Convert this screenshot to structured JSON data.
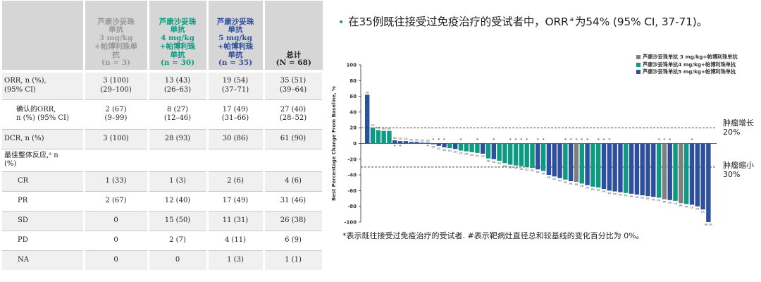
{
  "table": {
    "headers": [
      {
        "lines": [
          "芦康沙妥珠",
          "单抗",
          "3 mg/kg",
          "+帕博利珠单",
          "抗",
          "(n = 3)"
        ],
        "color": "c3"
      },
      {
        "lines": [
          "芦康沙妥珠",
          "单抗",
          "4 mg/kg",
          "+帕博利珠",
          "单抗",
          "(n = 30)"
        ],
        "color": "c4"
      },
      {
        "lines": [
          "芦康沙妥珠",
          "单抗",
          "5 mg/kg",
          "+帕博利珠",
          "单抗",
          "(n = 35)"
        ],
        "color": "c5"
      },
      {
        "lines": [
          "总计",
          "(N = 68)"
        ],
        "color": "ct"
      }
    ],
    "rows": [
      {
        "label": [
          "ORR, n (%),",
          "(95% CI)"
        ],
        "indent": 0,
        "values": [
          [
            "3 (100)",
            "(29–100)"
          ],
          [
            "13 (43)",
            "(26–63)"
          ],
          [
            "19 (54)",
            "(37–71)"
          ],
          [
            "35 (51)",
            "(39–64)"
          ]
        ],
        "h": 40
      },
      {
        "label": [
          "确认的ORR,",
          "n (%) (95% CI)"
        ],
        "indent": 1,
        "values": [
          [
            "2 (67)",
            "(9–99)"
          ],
          [
            "8 (27)",
            "(12–46)"
          ],
          [
            "17 (49)",
            "(31–66)"
          ],
          [
            "27 (40)",
            "(28–52)"
          ]
        ],
        "h": 42
      },
      {
        "label": [
          "DCR, n (%)"
        ],
        "indent": 0,
        "values": [
          [
            "3 (100)"
          ],
          [
            "28 (93)"
          ],
          [
            "30 (86)"
          ],
          [
            "61 (90)"
          ]
        ],
        "h": 28
      },
      {
        "label": [
          "最佳整体反应,ᵃ n",
          "(%)"
        ],
        "indent": 0,
        "values": [
          [],
          [],
          [],
          []
        ],
        "h": 32
      },
      {
        "label": [
          "CR"
        ],
        "indent": 2,
        "values": [
          [
            "1 (33)"
          ],
          [
            "1 (3)"
          ],
          [
            "2 (6)"
          ],
          [
            "4 (6)"
          ]
        ],
        "h": 28
      },
      {
        "label": [
          "PR"
        ],
        "indent": 2,
        "values": [
          [
            "2 (67)"
          ],
          [
            "12 (40)"
          ],
          [
            "17 (49)"
          ],
          [
            "31 (46)"
          ]
        ],
        "h": 28
      },
      {
        "label": [
          "SD"
        ],
        "indent": 2,
        "values": [
          [
            "0"
          ],
          [
            "15 (50)"
          ],
          [
            "11 (31)"
          ],
          [
            "26 (38)"
          ]
        ],
        "h": 28
      },
      {
        "label": [
          "PD"
        ],
        "indent": 2,
        "values": [
          [
            "0"
          ],
          [
            "2 (7)"
          ],
          [
            "4 (11)"
          ],
          [
            "6 (9)"
          ]
        ],
        "h": 28
      },
      {
        "label": [
          "NA"
        ],
        "indent": 2,
        "values": [
          [
            "0"
          ],
          [
            "0"
          ],
          [
            "1 (3)"
          ],
          [
            "1 (1)"
          ]
        ],
        "h": 28
      }
    ]
  },
  "headline": {
    "bullet": "•",
    "text_before": "在35例既往接受过免疫治疗的受试者中，ORR",
    "sup": "a",
    "text_after": "为54% (95% CI, 37-71)。"
  },
  "footnote": "*表示既往接受过免疫治疗的受试者. #表示靶病灶直径总和较基线的变化百分比为 0%。",
  "annotations": {
    "growth": [
      "肿瘤增长",
      "20%"
    ],
    "shrink": [
      "肿瘤缩小",
      "30%"
    ]
  },
  "chart_data": {
    "type": "bar",
    "ylabel": "Best Percentage Change From Baseline, %",
    "ylim": [
      -100,
      100
    ],
    "yticks": [
      100,
      80,
      60,
      40,
      20,
      0,
      -20,
      -40,
      -60,
      -80,
      -100
    ],
    "reference_lines": [
      20,
      -30
    ],
    "colors": {
      "3mg": "#7f7f7f",
      "4mg": "#0c9b82",
      "5mg": "#2d4f9e"
    },
    "legend": [
      {
        "key": "3mg",
        "label": "芦康沙妥珠单抗 3 mg/kg+帕博利珠单抗"
      },
      {
        "key": "4mg",
        "label": "芦康沙妥珠单抗4 mg/kg+帕博利珠单抗"
      },
      {
        "key": "5mg",
        "label": "芦康沙妥珠单抗5 mg/kg+帕博利珠单抗"
      }
    ],
    "bars": [
      {
        "g": "5mg",
        "v": 62,
        "r": "PD",
        "s": 0
      },
      {
        "g": "4mg",
        "v": 20,
        "r": "PD",
        "s": 0
      },
      {
        "g": "4mg",
        "v": 17,
        "r": "PD",
        "s": 0
      },
      {
        "g": "4mg",
        "v": 16,
        "r": "SD",
        "s": 0
      },
      {
        "g": "4mg",
        "v": 16,
        "r": "SD",
        "s": 0
      },
      {
        "g": "5mg",
        "v": 4,
        "r": "SD",
        "s": 1
      },
      {
        "g": "5mg",
        "v": 3,
        "r": "SD",
        "s": 1
      },
      {
        "g": "5mg",
        "v": 3,
        "r": "SD",
        "s": 0
      },
      {
        "g": "5mg",
        "v": 2,
        "r": "PD",
        "s": 0
      },
      {
        "g": "5mg",
        "v": 2,
        "r": "SD",
        "s": 0
      },
      {
        "g": "5mg",
        "v": 1,
        "r": "SD",
        "s": 0
      },
      {
        "g": "5mg",
        "v": 1,
        "r": "SD",
        "s": 1
      },
      {
        "g": "5mg",
        "v": -1,
        "r": "SD",
        "s": 1
      },
      {
        "g": "5mg",
        "v": -3,
        "r": "SD",
        "s": 1
      },
      {
        "g": "5mg",
        "v": -5,
        "r": "SD",
        "s": 1
      },
      {
        "g": "4mg",
        "v": -6,
        "r": "SD",
        "s": 0
      },
      {
        "g": "5mg",
        "v": -7,
        "r": "SD",
        "s": 0
      },
      {
        "g": "4mg",
        "v": -9,
        "r": "SD",
        "s": 1
      },
      {
        "g": "4mg",
        "v": -10,
        "r": "SD",
        "s": 0
      },
      {
        "g": "4mg",
        "v": -11,
        "r": "SD",
        "s": 0
      },
      {
        "g": "4mg",
        "v": -12,
        "r": "SD",
        "s": 1
      },
      {
        "g": "5mg",
        "v": -13,
        "r": "SD",
        "s": 0
      },
      {
        "g": "4mg",
        "v": -19,
        "r": "SD",
        "s": 0
      },
      {
        "g": "5mg",
        "v": -20,
        "r": "SD",
        "s": 1
      },
      {
        "g": "4mg",
        "v": -22,
        "r": "SD",
        "s": 0
      },
      {
        "g": "4mg",
        "v": -25,
        "r": "SD",
        "s": 0
      },
      {
        "g": "4mg",
        "v": -27,
        "r": "SD",
        "s": 1
      },
      {
        "g": "4mg",
        "v": -28,
        "r": "SD",
        "s": 1
      },
      {
        "g": "4mg",
        "v": -29,
        "r": "SD",
        "s": 1
      },
      {
        "g": "4mg",
        "v": -30,
        "r": "SD",
        "s": 1
      },
      {
        "g": "4mg",
        "v": -31,
        "r": "PR",
        "s": 0
      },
      {
        "g": "5mg",
        "v": -33,
        "r": "PR",
        "s": 1
      },
      {
        "g": "4mg",
        "v": -35,
        "r": "PR",
        "s": 1
      },
      {
        "g": "5mg",
        "v": -40,
        "r": "PR",
        "s": 0
      },
      {
        "g": "5mg",
        "v": -42,
        "r": "PR",
        "s": 0
      },
      {
        "g": "5mg",
        "v": -44,
        "r": "PR",
        "s": 0
      },
      {
        "g": "4mg",
        "v": -46,
        "r": "PR",
        "s": 1
      },
      {
        "g": "5mg",
        "v": -48,
        "r": "PR",
        "s": 1
      },
      {
        "g": "3mg",
        "v": -49,
        "r": "PR",
        "s": 1
      },
      {
        "g": "4mg",
        "v": -51,
        "r": "PR",
        "s": 1
      },
      {
        "g": "5mg",
        "v": -53,
        "r": "PR",
        "s": 1
      },
      {
        "g": "4mg",
        "v": -55,
        "r": "PR",
        "s": 0
      },
      {
        "g": "4mg",
        "v": -56,
        "r": "PR",
        "s": 1
      },
      {
        "g": "5mg",
        "v": -58,
        "r": "PR",
        "s": 1
      },
      {
        "g": "5mg",
        "v": -60,
        "r": "PR",
        "s": 1
      },
      {
        "g": "5mg",
        "v": -61,
        "r": "PR",
        "s": 0
      },
      {
        "g": "5mg",
        "v": -62,
        "r": "PR",
        "s": 0
      },
      {
        "g": "4mg",
        "v": -63,
        "r": "PR",
        "s": 0
      },
      {
        "g": "5mg",
        "v": -64,
        "r": "PR",
        "s": 0
      },
      {
        "g": "5mg",
        "v": -65,
        "r": "PR",
        "s": 0
      },
      {
        "g": "5mg",
        "v": -66,
        "r": "PR",
        "s": 0
      },
      {
        "g": "5mg",
        "v": -67,
        "r": "PR",
        "s": 0
      },
      {
        "g": "5mg",
        "v": -68,
        "r": "PR",
        "s": 0
      },
      {
        "g": "4mg",
        "v": -69,
        "r": "PR",
        "s": 1
      },
      {
        "g": "3mg",
        "v": -71,
        "r": "PR",
        "s": 1
      },
      {
        "g": "5mg",
        "v": -72,
        "r": "PR",
        "s": 1
      },
      {
        "g": "4mg",
        "v": -73,
        "r": "CR",
        "s": 0
      },
      {
        "g": "3mg",
        "v": -76,
        "r": "PR",
        "s": 0
      },
      {
        "g": "4mg",
        "v": -77,
        "r": "PR",
        "s": 0
      },
      {
        "g": "5mg",
        "v": -78,
        "r": "CR",
        "s": 1
      },
      {
        "g": "5mg",
        "v": -80,
        "r": "PR",
        "s": 0
      },
      {
        "g": "5mg",
        "v": -84,
        "r": "PR",
        "s": 0
      },
      {
        "g": "5mg",
        "v": -100,
        "r": "PR CR",
        "s": 0
      }
    ]
  }
}
